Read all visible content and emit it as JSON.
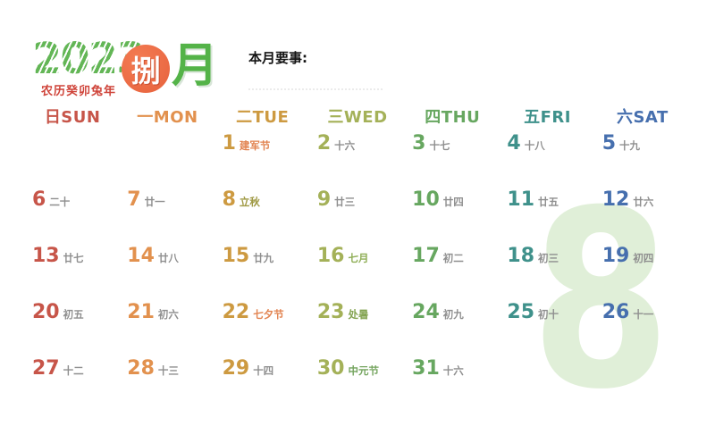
{
  "title": {
    "year": "2023",
    "lunar_year": "农历癸卯兔年",
    "month_number_char": "捌",
    "month_word": "月",
    "watermark_digit": "8"
  },
  "notes": {
    "label": "本月要事:"
  },
  "colors": {
    "year_green": "#63b656",
    "lunar_year_red": "#cf4339",
    "circle_orange": "#ed6c47",
    "month_green": "#54b348",
    "watermark_green": "#e0efd8",
    "lunar_default": "#8f8f8f",
    "festival_orange": "#e28350",
    "solar_term_green": "#84a452"
  },
  "weekdays": [
    {
      "label": "日SUN",
      "color": "#c75549"
    },
    {
      "label": "一MON",
      "color": "#e2914e"
    },
    {
      "label": "二TUE",
      "color": "#cd9a41"
    },
    {
      "label": "三WED",
      "color": "#a4b158"
    },
    {
      "label": "四THU",
      "color": "#67a760"
    },
    {
      "label": "五FRI",
      "color": "#3f918b"
    },
    {
      "label": "六SAT",
      "color": "#466fae"
    }
  ],
  "days": [
    {
      "date": "1",
      "lunar": "建军节",
      "row": 0,
      "col": 2,
      "lunar_color": "#e28350"
    },
    {
      "date": "2",
      "lunar": "十六",
      "row": 0,
      "col": 3
    },
    {
      "date": "3",
      "lunar": "十七",
      "row": 0,
      "col": 4
    },
    {
      "date": "4",
      "lunar": "十八",
      "row": 0,
      "col": 5
    },
    {
      "date": "5",
      "lunar": "十九",
      "row": 0,
      "col": 6
    },
    {
      "date": "6",
      "lunar": "二十",
      "row": 1,
      "col": 0
    },
    {
      "date": "7",
      "lunar": "廿一",
      "row": 1,
      "col": 1
    },
    {
      "date": "8",
      "lunar": "立秋",
      "row": 1,
      "col": 2,
      "lunar_color": "#a09a45"
    },
    {
      "date": "9",
      "lunar": "廿三",
      "row": 1,
      "col": 3
    },
    {
      "date": "10",
      "lunar": "廿四",
      "row": 1,
      "col": 4
    },
    {
      "date": "11",
      "lunar": "廿五",
      "row": 1,
      "col": 5
    },
    {
      "date": "12",
      "lunar": "廿六",
      "row": 1,
      "col": 6
    },
    {
      "date": "13",
      "lunar": "廿七",
      "row": 2,
      "col": 0
    },
    {
      "date": "14",
      "lunar": "廿八",
      "row": 2,
      "col": 1
    },
    {
      "date": "15",
      "lunar": "廿九",
      "row": 2,
      "col": 2
    },
    {
      "date": "16",
      "lunar": "七月",
      "row": 2,
      "col": 3,
      "lunar_color": "#8fae56"
    },
    {
      "date": "17",
      "lunar": "初二",
      "row": 2,
      "col": 4
    },
    {
      "date": "18",
      "lunar": "初三",
      "row": 2,
      "col": 5
    },
    {
      "date": "19",
      "lunar": "初四",
      "row": 2,
      "col": 6
    },
    {
      "date": "20",
      "lunar": "初五",
      "row": 3,
      "col": 0
    },
    {
      "date": "21",
      "lunar": "初六",
      "row": 3,
      "col": 1
    },
    {
      "date": "22",
      "lunar": "七夕节",
      "row": 3,
      "col": 2,
      "lunar_color": "#e28350"
    },
    {
      "date": "23",
      "lunar": "处暑",
      "row": 3,
      "col": 3,
      "lunar_color": "#84a452"
    },
    {
      "date": "24",
      "lunar": "初九",
      "row": 3,
      "col": 4
    },
    {
      "date": "25",
      "lunar": "初十",
      "row": 3,
      "col": 5
    },
    {
      "date": "26",
      "lunar": "十一",
      "row": 3,
      "col": 6
    },
    {
      "date": "27",
      "lunar": "十二",
      "row": 4,
      "col": 0
    },
    {
      "date": "28",
      "lunar": "十三",
      "row": 4,
      "col": 1
    },
    {
      "date": "29",
      "lunar": "十四",
      "row": 4,
      "col": 2
    },
    {
      "date": "30",
      "lunar": "中元节",
      "row": 4,
      "col": 3,
      "lunar_color": "#74a45e"
    },
    {
      "date": "31",
      "lunar": "十六",
      "row": 4,
      "col": 4
    }
  ]
}
